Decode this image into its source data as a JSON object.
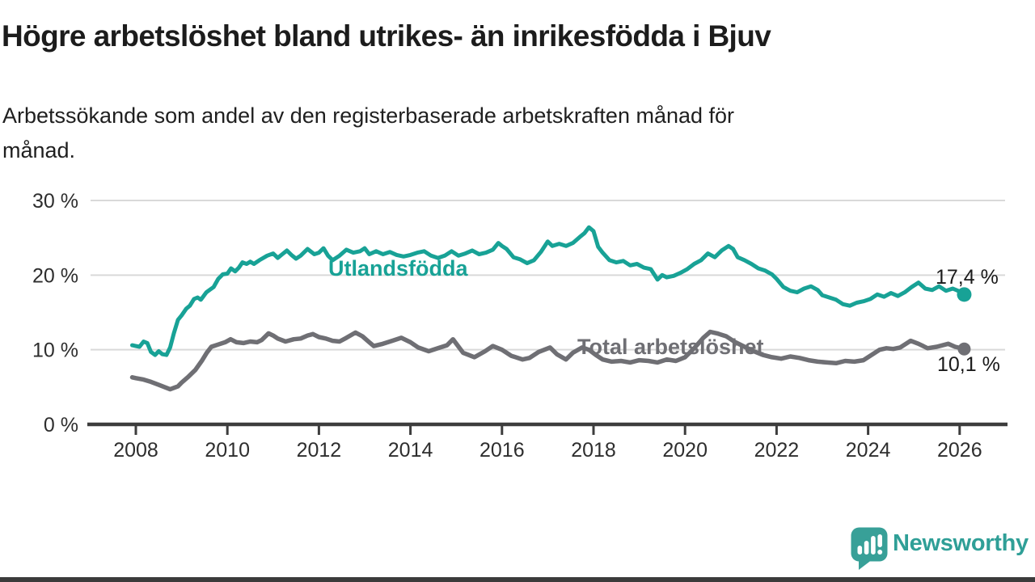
{
  "header": {
    "title": "Högre arbetslöshet bland utrikes- än inrikesfödda i Bjuv",
    "subtitle_line1": "Arbetssökande som andel av den registerbaserade arbetskraften månad för",
    "subtitle_line2": "månad."
  },
  "chart_data": {
    "type": "line",
    "title": "Högre arbetslöshet bland utrikes- än inrikesfödda i Bjuv",
    "subtitle": "Arbetssökande som andel av den registerbaserade arbetskraften månad för månad.",
    "grid": true,
    "legend_position": "inline-on-line",
    "x_axis": {
      "ticks": [
        2008,
        2010,
        2012,
        2014,
        2016,
        2018,
        2020,
        2022,
        2024,
        2026
      ],
      "range": [
        2007.8,
        2027.0
      ]
    },
    "y_axis": {
      "unit": "%",
      "range": [
        0,
        30
      ],
      "ticks": [
        {
          "value": 0,
          "label": "0 %"
        },
        {
          "value": 10,
          "label": "10 %"
        },
        {
          "value": 20,
          "label": "20 %"
        },
        {
          "value": 30,
          "label": "30 %"
        }
      ]
    },
    "series": [
      {
        "name": "Utlandsfödda",
        "color": "#18a296",
        "end_value": 17.4,
        "end_label": "17,4 %",
        "points": [
          [
            2007.92,
            10.6
          ],
          [
            2008.0,
            10.5
          ],
          [
            2008.08,
            10.4
          ],
          [
            2008.17,
            11.1
          ],
          [
            2008.25,
            10.9
          ],
          [
            2008.33,
            9.7
          ],
          [
            2008.42,
            9.3
          ],
          [
            2008.5,
            9.8
          ],
          [
            2008.58,
            9.4
          ],
          [
            2008.67,
            9.3
          ],
          [
            2008.75,
            10.3
          ],
          [
            2008.83,
            12.2
          ],
          [
            2008.92,
            14.0
          ],
          [
            2009.0,
            14.6
          ],
          [
            2009.1,
            15.5
          ],
          [
            2009.18,
            15.9
          ],
          [
            2009.27,
            16.8
          ],
          [
            2009.35,
            17.0
          ],
          [
            2009.42,
            16.7
          ],
          [
            2009.54,
            17.7
          ],
          [
            2009.63,
            18.1
          ],
          [
            2009.7,
            18.4
          ],
          [
            2009.8,
            19.5
          ],
          [
            2009.9,
            20.1
          ],
          [
            2010.0,
            20.2
          ],
          [
            2010.08,
            20.9
          ],
          [
            2010.17,
            20.5
          ],
          [
            2010.25,
            21.0
          ],
          [
            2010.33,
            21.7
          ],
          [
            2010.42,
            21.5
          ],
          [
            2010.5,
            21.8
          ],
          [
            2010.58,
            21.5
          ],
          [
            2010.7,
            22.0
          ],
          [
            2010.87,
            22.6
          ],
          [
            2011.0,
            22.9
          ],
          [
            2011.1,
            22.3
          ],
          [
            2011.2,
            22.8
          ],
          [
            2011.3,
            23.3
          ],
          [
            2011.4,
            22.7
          ],
          [
            2011.5,
            22.2
          ],
          [
            2011.6,
            22.6
          ],
          [
            2011.75,
            23.5
          ],
          [
            2011.9,
            22.8
          ],
          [
            2012.0,
            23.0
          ],
          [
            2012.1,
            23.6
          ],
          [
            2012.2,
            22.6
          ],
          [
            2012.3,
            22.0
          ],
          [
            2012.45,
            22.6
          ],
          [
            2012.6,
            23.4
          ],
          [
            2012.75,
            23.0
          ],
          [
            2012.9,
            23.2
          ],
          [
            2013.0,
            23.6
          ],
          [
            2013.1,
            22.8
          ],
          [
            2013.25,
            23.2
          ],
          [
            2013.4,
            22.8
          ],
          [
            2013.55,
            23.1
          ],
          [
            2013.7,
            22.7
          ],
          [
            2013.85,
            22.5
          ],
          [
            2014.0,
            22.7
          ],
          [
            2014.15,
            23.0
          ],
          [
            2014.3,
            23.2
          ],
          [
            2014.45,
            22.6
          ],
          [
            2014.6,
            22.3
          ],
          [
            2014.75,
            22.6
          ],
          [
            2014.9,
            23.2
          ],
          [
            2015.05,
            22.6
          ],
          [
            2015.2,
            22.9
          ],
          [
            2015.35,
            23.3
          ],
          [
            2015.5,
            22.8
          ],
          [
            2015.65,
            23.0
          ],
          [
            2015.8,
            23.4
          ],
          [
            2015.92,
            24.3
          ],
          [
            2016.0,
            23.9
          ],
          [
            2016.1,
            23.5
          ],
          [
            2016.25,
            22.4
          ],
          [
            2016.4,
            22.1
          ],
          [
            2016.55,
            21.6
          ],
          [
            2016.7,
            22.0
          ],
          [
            2016.85,
            23.1
          ],
          [
            2017.0,
            24.5
          ],
          [
            2017.1,
            23.9
          ],
          [
            2017.25,
            24.2
          ],
          [
            2017.4,
            23.9
          ],
          [
            2017.55,
            24.3
          ],
          [
            2017.7,
            25.1
          ],
          [
            2017.8,
            25.6
          ],
          [
            2017.9,
            26.4
          ],
          [
            2018.0,
            25.9
          ],
          [
            2018.1,
            23.8
          ],
          [
            2018.2,
            23.0
          ],
          [
            2018.35,
            22.0
          ],
          [
            2018.5,
            21.7
          ],
          [
            2018.65,
            21.9
          ],
          [
            2018.8,
            21.3
          ],
          [
            2018.95,
            21.5
          ],
          [
            2019.1,
            21.0
          ],
          [
            2019.25,
            20.8
          ],
          [
            2019.4,
            19.4
          ],
          [
            2019.5,
            20.0
          ],
          [
            2019.6,
            19.7
          ],
          [
            2019.75,
            19.9
          ],
          [
            2019.9,
            20.3
          ],
          [
            2020.05,
            20.8
          ],
          [
            2020.2,
            21.5
          ],
          [
            2020.35,
            22.0
          ],
          [
            2020.5,
            22.9
          ],
          [
            2020.65,
            22.4
          ],
          [
            2020.8,
            23.3
          ],
          [
            2020.95,
            23.9
          ],
          [
            2021.05,
            23.5
          ],
          [
            2021.15,
            22.4
          ],
          [
            2021.3,
            22.0
          ],
          [
            2021.45,
            21.5
          ],
          [
            2021.6,
            20.9
          ],
          [
            2021.75,
            20.6
          ],
          [
            2021.9,
            20.1
          ],
          [
            2022.0,
            19.5
          ],
          [
            2022.15,
            18.4
          ],
          [
            2022.3,
            17.9
          ],
          [
            2022.45,
            17.7
          ],
          [
            2022.6,
            18.2
          ],
          [
            2022.75,
            18.5
          ],
          [
            2022.9,
            18.0
          ],
          [
            2023.0,
            17.3
          ],
          [
            2023.15,
            17.0
          ],
          [
            2023.3,
            16.7
          ],
          [
            2023.45,
            16.1
          ],
          [
            2023.6,
            15.9
          ],
          [
            2023.75,
            16.3
          ],
          [
            2023.9,
            16.5
          ],
          [
            2024.05,
            16.8
          ],
          [
            2024.2,
            17.4
          ],
          [
            2024.35,
            17.1
          ],
          [
            2024.5,
            17.6
          ],
          [
            2024.65,
            17.2
          ],
          [
            2024.8,
            17.7
          ],
          [
            2024.95,
            18.4
          ],
          [
            2025.1,
            19.0
          ],
          [
            2025.25,
            18.2
          ],
          [
            2025.4,
            18.0
          ],
          [
            2025.55,
            18.5
          ],
          [
            2025.7,
            17.9
          ],
          [
            2025.85,
            18.2
          ],
          [
            2026.0,
            17.8
          ],
          [
            2026.1,
            17.4
          ]
        ]
      },
      {
        "name": "Total arbetslöshet",
        "color": "#6f6f74",
        "end_value": 10.1,
        "end_label": "10,1 %",
        "points": [
          [
            2007.92,
            6.3
          ],
          [
            2008.0,
            6.2
          ],
          [
            2008.17,
            6.0
          ],
          [
            2008.33,
            5.7
          ],
          [
            2008.5,
            5.3
          ],
          [
            2008.67,
            4.9
          ],
          [
            2008.75,
            4.7
          ],
          [
            2008.92,
            5.1
          ],
          [
            2009.0,
            5.6
          ],
          [
            2009.15,
            6.4
          ],
          [
            2009.3,
            7.3
          ],
          [
            2009.45,
            8.6
          ],
          [
            2009.55,
            9.6
          ],
          [
            2009.65,
            10.4
          ],
          [
            2009.8,
            10.7
          ],
          [
            2009.95,
            11.0
          ],
          [
            2010.07,
            11.4
          ],
          [
            2010.2,
            11.0
          ],
          [
            2010.35,
            10.9
          ],
          [
            2010.5,
            11.1
          ],
          [
            2010.65,
            11.0
          ],
          [
            2010.75,
            11.3
          ],
          [
            2010.9,
            12.2
          ],
          [
            2011.0,
            11.9
          ],
          [
            2011.1,
            11.5
          ],
          [
            2011.27,
            11.1
          ],
          [
            2011.45,
            11.4
          ],
          [
            2011.6,
            11.5
          ],
          [
            2011.75,
            11.9
          ],
          [
            2011.87,
            12.1
          ],
          [
            2012.0,
            11.7
          ],
          [
            2012.15,
            11.5
          ],
          [
            2012.3,
            11.2
          ],
          [
            2012.45,
            11.1
          ],
          [
            2012.6,
            11.6
          ],
          [
            2012.8,
            12.3
          ],
          [
            2012.95,
            11.8
          ],
          [
            2013.1,
            11.0
          ],
          [
            2013.2,
            10.5
          ],
          [
            2013.4,
            10.8
          ],
          [
            2013.6,
            11.2
          ],
          [
            2013.8,
            11.6
          ],
          [
            2014.0,
            11.0
          ],
          [
            2014.17,
            10.3
          ],
          [
            2014.4,
            9.8
          ],
          [
            2014.6,
            10.2
          ],
          [
            2014.8,
            10.6
          ],
          [
            2014.93,
            11.4
          ],
          [
            2015.15,
            9.6
          ],
          [
            2015.4,
            9.0
          ],
          [
            2015.63,
            9.8
          ],
          [
            2015.8,
            10.5
          ],
          [
            2016.0,
            10.0
          ],
          [
            2016.2,
            9.2
          ],
          [
            2016.45,
            8.7
          ],
          [
            2016.6,
            8.9
          ],
          [
            2016.8,
            9.7
          ],
          [
            2017.05,
            10.3
          ],
          [
            2017.2,
            9.4
          ],
          [
            2017.4,
            8.7
          ],
          [
            2017.55,
            9.6
          ],
          [
            2017.75,
            10.3
          ],
          [
            2017.9,
            10.0
          ],
          [
            2018.05,
            9.3
          ],
          [
            2018.2,
            8.7
          ],
          [
            2018.4,
            8.4
          ],
          [
            2018.6,
            8.5
          ],
          [
            2018.8,
            8.3
          ],
          [
            2019.0,
            8.6
          ],
          [
            2019.2,
            8.5
          ],
          [
            2019.4,
            8.3
          ],
          [
            2019.6,
            8.7
          ],
          [
            2019.8,
            8.5
          ],
          [
            2020.0,
            9.0
          ],
          [
            2020.2,
            10.2
          ],
          [
            2020.4,
            11.6
          ],
          [
            2020.55,
            12.4
          ],
          [
            2020.7,
            12.2
          ],
          [
            2020.9,
            11.8
          ],
          [
            2021.1,
            11.0
          ],
          [
            2021.3,
            10.4
          ],
          [
            2021.5,
            9.8
          ],
          [
            2021.7,
            9.3
          ],
          [
            2021.9,
            9.0
          ],
          [
            2022.1,
            8.8
          ],
          [
            2022.3,
            9.1
          ],
          [
            2022.5,
            8.9
          ],
          [
            2022.7,
            8.6
          ],
          [
            2022.9,
            8.4
          ],
          [
            2023.1,
            8.3
          ],
          [
            2023.3,
            8.2
          ],
          [
            2023.5,
            8.5
          ],
          [
            2023.7,
            8.4
          ],
          [
            2023.9,
            8.6
          ],
          [
            2024.1,
            9.4
          ],
          [
            2024.25,
            10.0
          ],
          [
            2024.4,
            10.2
          ],
          [
            2024.55,
            10.1
          ],
          [
            2024.7,
            10.3
          ],
          [
            2024.93,
            11.2
          ],
          [
            2025.1,
            10.8
          ],
          [
            2025.3,
            10.2
          ],
          [
            2025.5,
            10.4
          ],
          [
            2025.75,
            10.8
          ],
          [
            2025.9,
            10.4
          ],
          [
            2026.1,
            10.1
          ]
        ]
      }
    ]
  },
  "branding": {
    "name": "Newsworthy",
    "icon": "newsworthy-speech-bubble-chart-icon"
  },
  "colors": {
    "accent_teal": "#18a296",
    "line_gray": "#6f6f74",
    "logo_teal": "#2f9f97",
    "grid": "#d9d9d9",
    "axis": "#3d3d3d",
    "text": "#1c1c1c",
    "bottom_bar": "#3b3b3b"
  }
}
